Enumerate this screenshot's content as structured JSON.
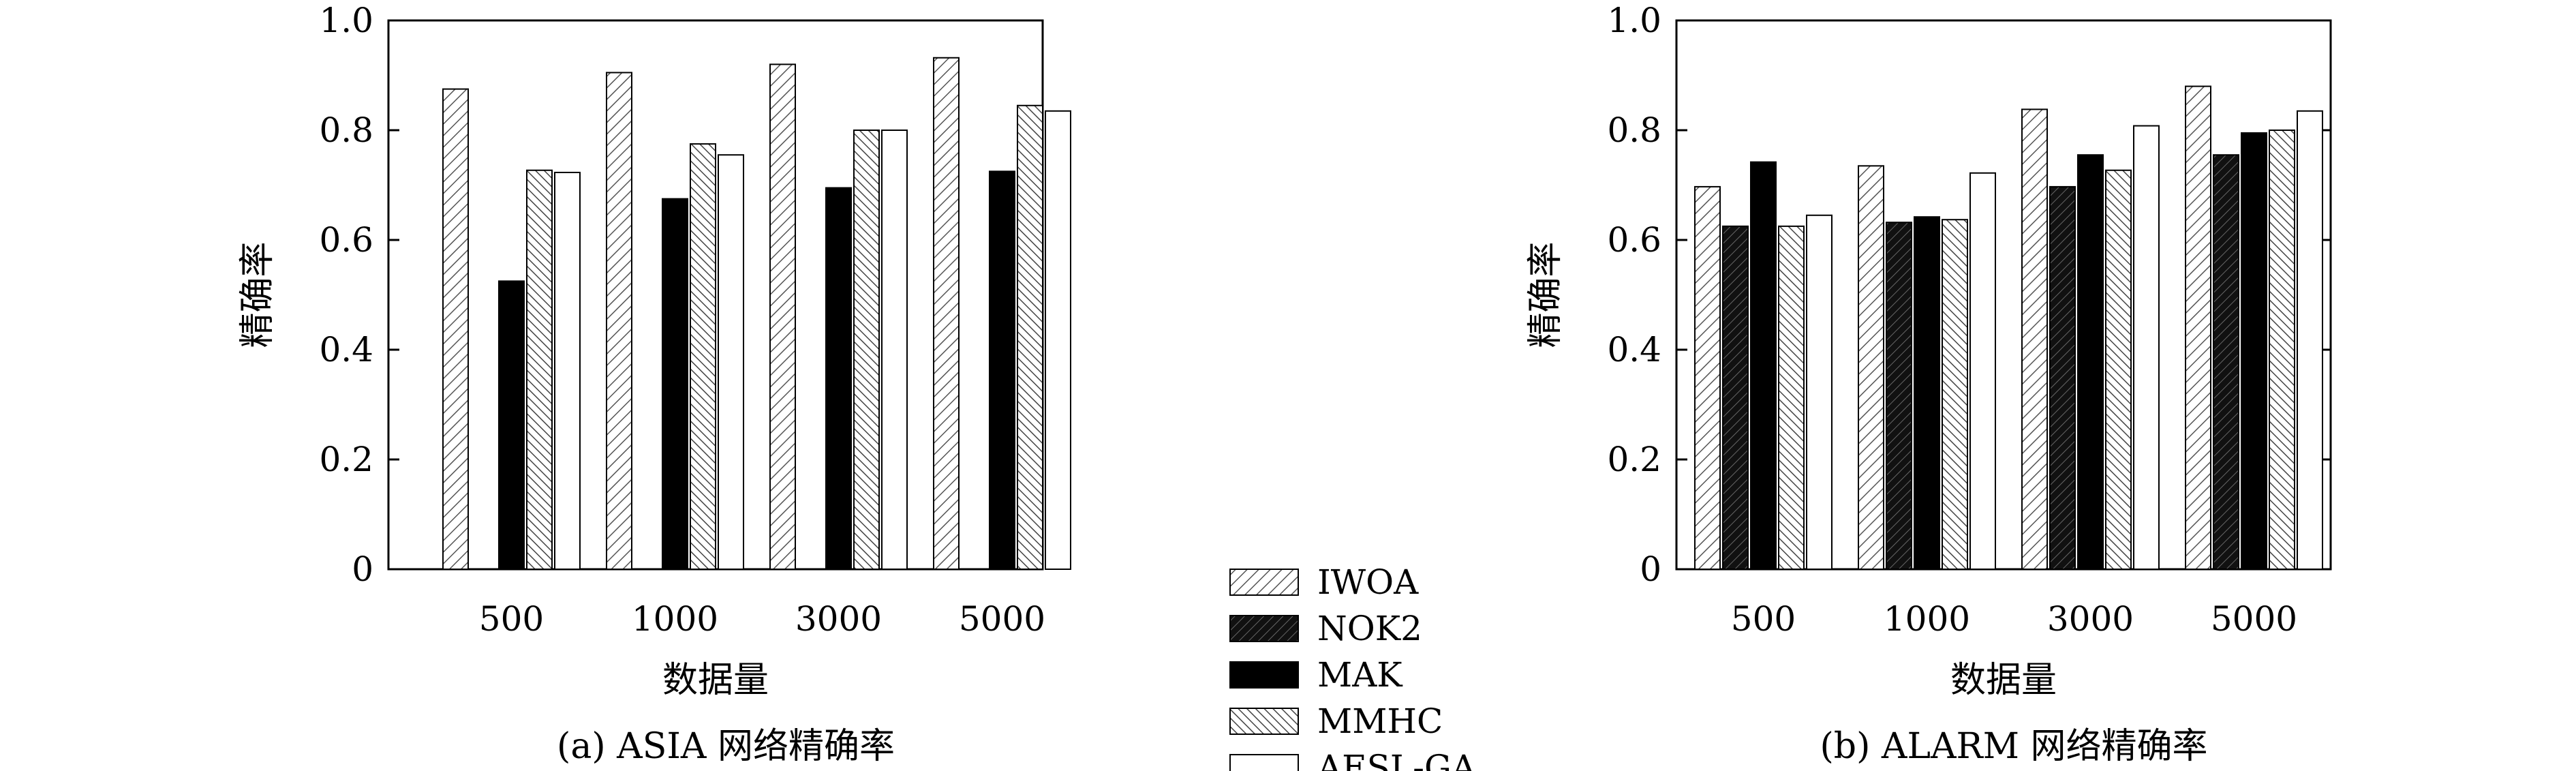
{
  "chart_data": [
    {
      "type": "bar",
      "title": "(a) ASIA 网络精确率",
      "xlabel": "数据量",
      "ylabel": "精确率",
      "categories": [
        "500",
        "1000",
        "3000",
        "5000"
      ],
      "ylim": [
        0,
        1.0
      ],
      "yticks": [
        "0",
        "0.2",
        "0.4",
        "0.6",
        "0.8",
        "1.0"
      ],
      "series": [
        {
          "name": "IWOA",
          "values": [
            0.875,
            0.905,
            0.92,
            0.932
          ]
        },
        {
          "name": "NOK2",
          "values": [
            null,
            null,
            null,
            null
          ]
        },
        {
          "name": "MAK",
          "values": [
            0.525,
            0.675,
            0.695,
            0.725
          ]
        },
        {
          "name": "MMHC",
          "values": [
            0.727,
            0.775,
            0.8,
            0.845
          ]
        },
        {
          "name": "AESL-GA",
          "values": [
            0.723,
            0.755,
            0.8,
            0.835
          ]
        }
      ]
    },
    {
      "type": "bar",
      "title": "(b) ALARM 网络精确率",
      "xlabel": "数据量",
      "ylabel": "精确率",
      "categories": [
        "500",
        "1000",
        "3000",
        "5000"
      ],
      "ylim": [
        0,
        1.0
      ],
      "yticks": [
        "0",
        "0.2",
        "0.4",
        "0.6",
        "0.8",
        "1.0"
      ],
      "series": [
        {
          "name": "IWOA",
          "values": [
            0.697,
            0.735,
            0.838,
            0.88
          ]
        },
        {
          "name": "NOK2",
          "values": [
            0.625,
            0.632,
            0.697,
            0.755
          ]
        },
        {
          "name": "MAK",
          "values": [
            0.742,
            0.642,
            0.755,
            0.795
          ]
        },
        {
          "name": "MMHC",
          "values": [
            0.625,
            0.637,
            0.727,
            0.8
          ]
        },
        {
          "name": "AESL-GA",
          "values": [
            0.645,
            0.722,
            0.808,
            0.835
          ]
        }
      ]
    }
  ],
  "legend": {
    "placement": "bottom-center",
    "entries": [
      "IWOA",
      "NOK2",
      "MAK",
      "MMHC",
      "AESL-GA"
    ]
  }
}
